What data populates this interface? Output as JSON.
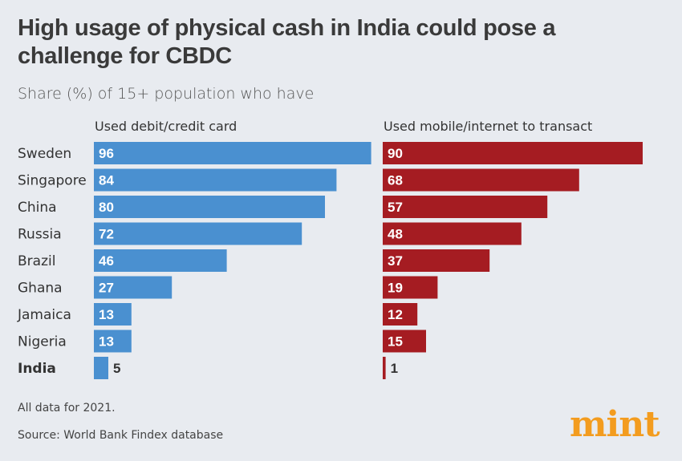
{
  "chart_data": {
    "type": "bar",
    "title": "High usage of physical cash in India could pose a challenge for CBDC",
    "subtitle": "Share (%) of 15+ population who have",
    "categories": [
      "Sweden",
      "Singapore",
      "China",
      "Russia",
      "Brazil",
      "Ghana",
      "Jamaica",
      "Nigeria",
      "India"
    ],
    "highlight": "India",
    "series": [
      {
        "name": "Used debit/credit card",
        "values": [
          96,
          84,
          80,
          72,
          46,
          27,
          13,
          13,
          5
        ],
        "color": "#4a90d0"
      },
      {
        "name": "Used mobile/internet to transact",
        "values": [
          90,
          68,
          57,
          48,
          37,
          19,
          12,
          15,
          1
        ],
        "color": "#a51c22"
      }
    ],
    "xlim": [
      0,
      100
    ],
    "grid": false,
    "notes": [
      "All data for 2021.",
      "Source: World Bank Findex database"
    ]
  },
  "logo": "mint"
}
